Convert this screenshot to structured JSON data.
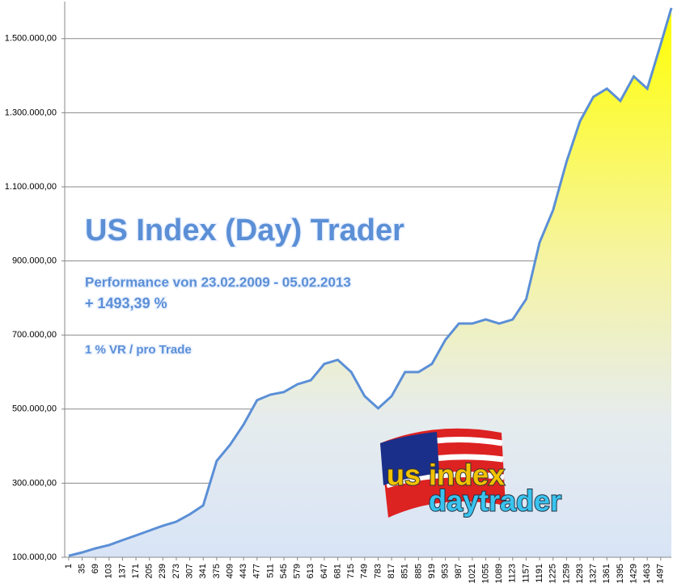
{
  "chart_data": {
    "type": "area",
    "annotations": [
      "US Index (Day) Trader",
      "Performance  von  23.02.2009 - 05.02.2013",
      "+ 1493,39 %",
      "1 % VR / pro Trade",
      "us index",
      "daytrader"
    ],
    "x": [
      1,
      35,
      69,
      103,
      137,
      171,
      205,
      239,
      273,
      307,
      341,
      375,
      409,
      443,
      477,
      511,
      545,
      579,
      613,
      647,
      681,
      715,
      749,
      783,
      817,
      851,
      885,
      919,
      953,
      987,
      1021,
      1055,
      1089,
      1123,
      1157,
      1191,
      1225,
      1259,
      1293,
      1327,
      1361,
      1395,
      1429,
      1463,
      1497,
      1524
    ],
    "values": [
      104000,
      113000,
      124000,
      133000,
      146000,
      159000,
      172000,
      185000,
      196000,
      216000,
      240000,
      360000,
      404000,
      458000,
      524000,
      539000,
      546000,
      567000,
      578000,
      622000,
      633000,
      600000,
      535000,
      502000,
      535000,
      600000,
      600000,
      622000,
      687000,
      731000,
      731000,
      742000,
      731000,
      742000,
      797000,
      950000,
      1037000,
      1168000,
      1277000,
      1343000,
      1365000,
      1332000,
      1398000,
      1365000,
      1485000,
      1583000
    ],
    "xlim": [
      -9,
      1524
    ],
    "ylim": [
      100000,
      1600000
    ],
    "xticks": [
      1,
      35,
      69,
      103,
      137,
      171,
      205,
      239,
      273,
      307,
      341,
      375,
      409,
      443,
      477,
      511,
      545,
      579,
      613,
      647,
      681,
      715,
      749,
      783,
      817,
      851,
      885,
      919,
      953,
      987,
      1021,
      1055,
      1089,
      1123,
      1157,
      1191,
      1225,
      1259,
      1293,
      1327,
      1361,
      1395,
      1429,
      1463,
      1497
    ],
    "yticks": [
      {
        "value": 100000,
        "label": "100.000,00"
      },
      {
        "value": 300000,
        "label": "300.000,00"
      },
      {
        "value": 500000,
        "label": "500.000,00"
      },
      {
        "value": 700000,
        "label": "700.000,00"
      },
      {
        "value": 900000,
        "label": "900.000,00"
      },
      {
        "value": 1100000,
        "label": "1.100.000,00"
      },
      {
        "value": 1300000,
        "label": "1.300.000,00"
      },
      {
        "value": 1500000,
        "label": "1.500.000,00"
      }
    ],
    "color": "#5b8fd6",
    "grid": true
  }
}
